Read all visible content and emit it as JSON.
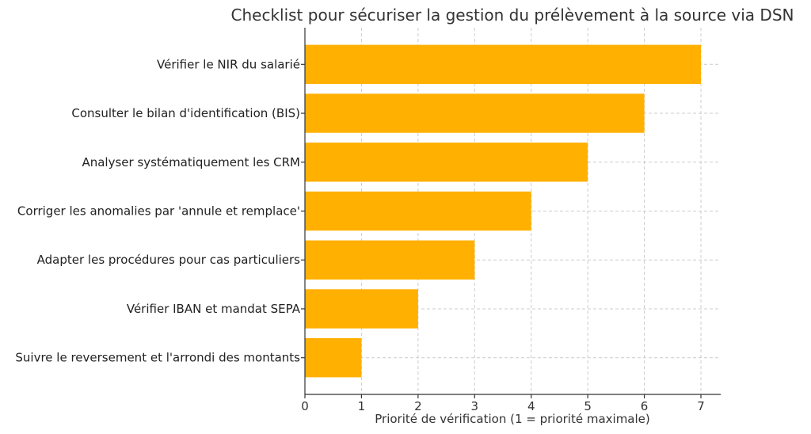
{
  "chart_data": {
    "type": "bar",
    "orientation": "horizontal",
    "title": "Checklist pour sécuriser la gestion du prélèvement à la source via DSN",
    "xlabel": "Priorité de vérification (1 = priorité maximale)",
    "ylabel": "",
    "categories": [
      "Vérifier le NIR du salarié",
      "Consulter le bilan d'identification (BIS)",
      "Analyser systématiquement les CRM",
      "Corriger les anomalies par 'annule et remplace'",
      "Adapter les procédures pour cas particuliers",
      "Vérifier IBAN et mandat SEPA",
      "Suivre le reversement et l'arrondi des montants"
    ],
    "values": [
      7,
      6,
      5,
      4,
      3,
      2,
      1
    ],
    "xlim": [
      0,
      7.35
    ],
    "xticks": [
      "0",
      "1",
      "2",
      "3",
      "4",
      "5",
      "6",
      "7"
    ],
    "grid": true,
    "bar_color": "#FFB000"
  }
}
